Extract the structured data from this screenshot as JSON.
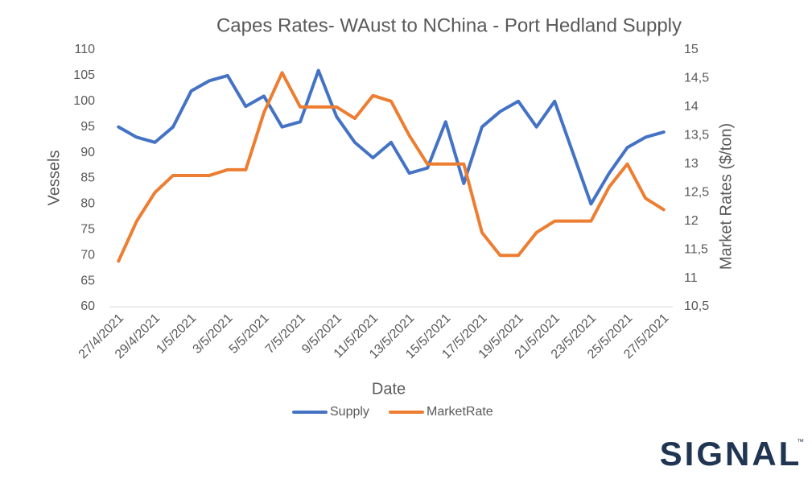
{
  "chart_data": {
    "type": "line",
    "title": "Capes Rates- WAust to NChina - Port Hedland Supply",
    "xlabel": "Date",
    "ylabel": "Vessels",
    "y2label": "Market  Rates ($/ton)",
    "categories": [
      "27/4/2021",
      null,
      "29/4/2021",
      null,
      "1/5/2021",
      null,
      "3/5/2021",
      null,
      "5/5/2021",
      null,
      "7/5/2021",
      null,
      "9/5/2021",
      null,
      "11/5/2021",
      null,
      "13/5/2021",
      null,
      "15/5/2021",
      null,
      "17/5/2021",
      null,
      "19/5/2021",
      null,
      "21/5/2021",
      null,
      "23/5/2021",
      null,
      "25/5/2021",
      null,
      "27/5/2021"
    ],
    "series": [
      {
        "name": "Supply",
        "color": "#4472c4",
        "values": [
          95,
          93,
          92,
          95,
          102,
          104,
          105,
          99,
          101,
          95,
          96,
          106,
          97,
          92,
          89,
          92,
          86,
          87,
          96,
          84,
          95,
          98,
          100,
          95,
          100,
          90,
          80,
          86,
          91,
          93,
          94
        ]
      },
      {
        "name": "MarketRate",
        "color": "#ed7d31",
        "axis": "y2",
        "values": [
          11.3,
          12.0,
          12.5,
          12.8,
          12.8,
          12.8,
          12.9,
          12.9,
          13.9,
          14.6,
          14.0,
          14.0,
          14.0,
          13.8,
          14.2,
          14.1,
          13.5,
          13.0,
          13.0,
          13.0,
          11.8,
          11.4,
          11.4,
          11.8,
          12.0,
          12.0,
          12.0,
          12.6,
          13.0,
          12.4,
          12.2
        ]
      }
    ],
    "ylim": [
      60,
      110
    ],
    "yticks": [
      60,
      65,
      70,
      75,
      80,
      85,
      90,
      95,
      100,
      105,
      110
    ],
    "y2lim": [
      10.5,
      15
    ],
    "y2ticks": [
      {
        "value": 10.5,
        "label": "10,5"
      },
      11,
      {
        "value": 11.5,
        "label": "11,5"
      },
      12,
      {
        "value": 12.5,
        "label": "12,5"
      },
      13,
      {
        "value": 13.5,
        "label": "13,5"
      },
      14,
      {
        "value": 14.5,
        "label": "14,5"
      },
      15
    ],
    "grid": false,
    "legend": "bottom"
  },
  "logo": {
    "text": "SIGNAL",
    "mark": "™"
  }
}
